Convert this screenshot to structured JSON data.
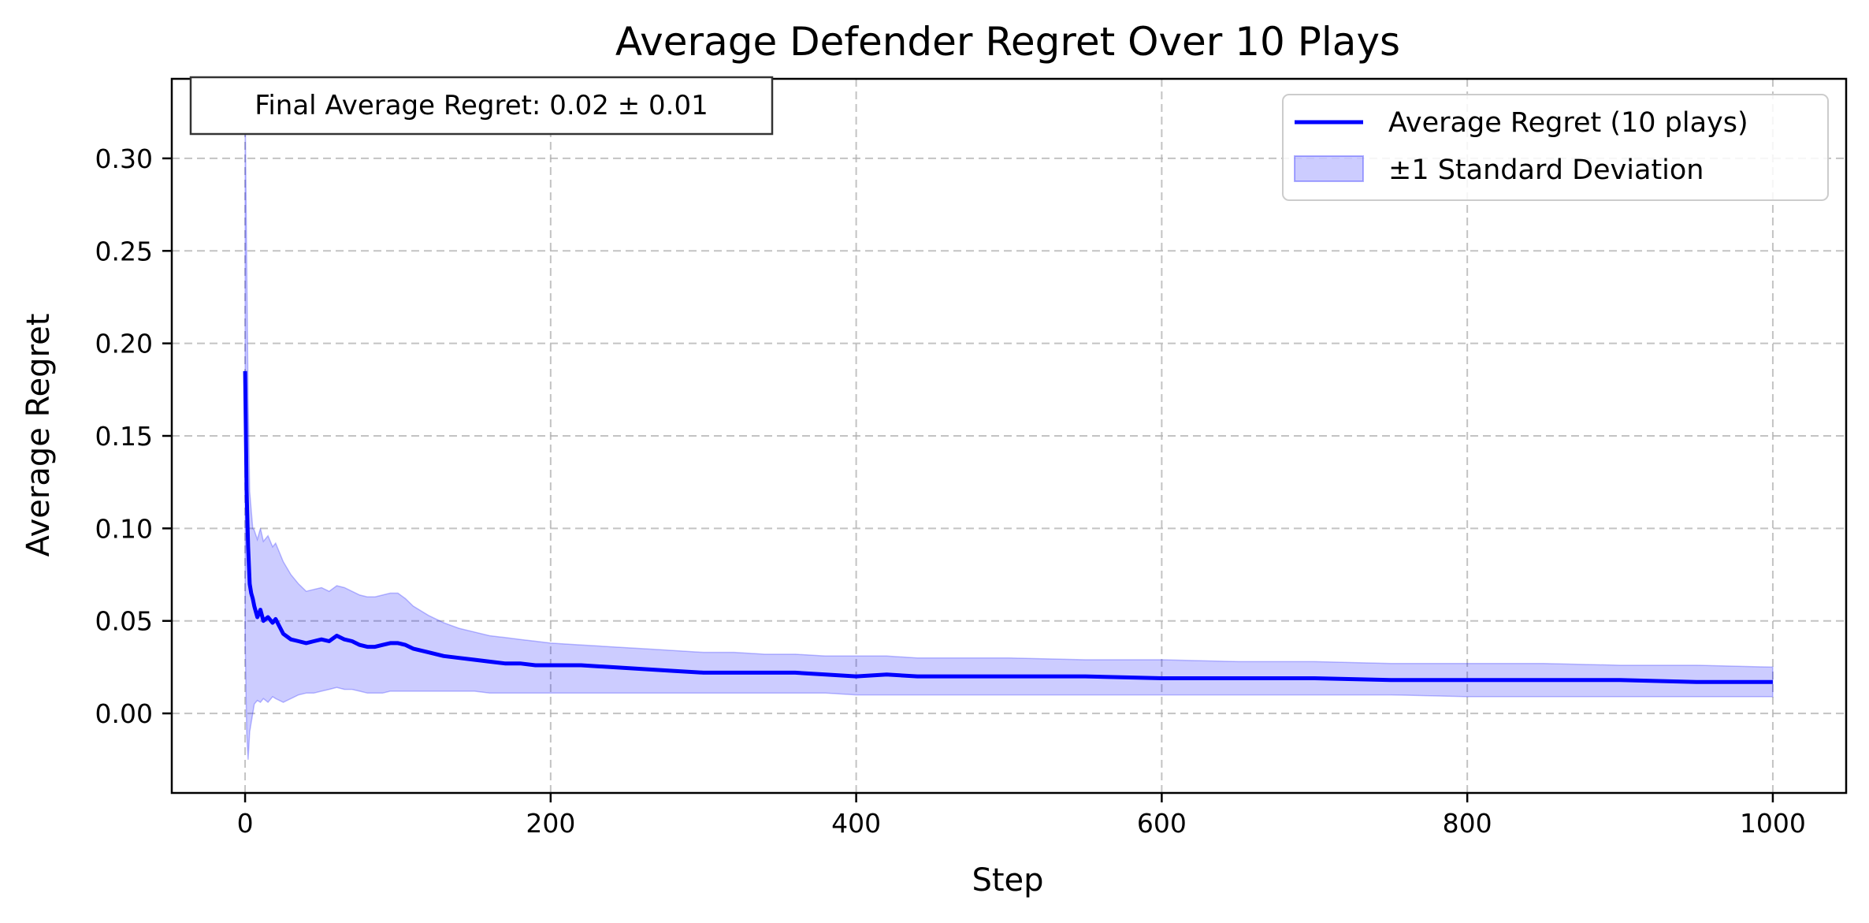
{
  "chart_data": {
    "type": "line",
    "title": "Average Defender Regret Over 10 Plays",
    "xlabel": "Step",
    "ylabel": "Average Regret",
    "xlim": [
      -48,
      1048
    ],
    "ylim": [
      -0.043,
      0.343
    ],
    "xticks": [
      0,
      200,
      400,
      600,
      800,
      1000
    ],
    "yticks": [
      0.0,
      0.05,
      0.1,
      0.15,
      0.2,
      0.25,
      0.3
    ],
    "ytick_labels": [
      "0.00",
      "0.05",
      "0.10",
      "0.15",
      "0.20",
      "0.25",
      "0.30"
    ],
    "grid": true,
    "legend_position": "top-right",
    "annotation": "Final Average Regret: 0.02 ± 0.01",
    "series": [
      {
        "name": "Average Regret (10 plays)",
        "color": "#0000ff",
        "kind": "line",
        "x": [
          0,
          1,
          2,
          3,
          4,
          5,
          6,
          8,
          10,
          12,
          15,
          18,
          20,
          25,
          30,
          35,
          40,
          45,
          50,
          55,
          60,
          65,
          70,
          75,
          80,
          85,
          90,
          95,
          100,
          105,
          110,
          120,
          130,
          140,
          150,
          160,
          170,
          180,
          190,
          200,
          220,
          240,
          260,
          280,
          300,
          320,
          340,
          360,
          380,
          400,
          420,
          440,
          460,
          480,
          500,
          550,
          600,
          650,
          700,
          750,
          800,
          850,
          900,
          950,
          1000
        ],
        "y": [
          0.185,
          0.12,
          0.09,
          0.07,
          0.065,
          0.062,
          0.058,
          0.052,
          0.056,
          0.05,
          0.052,
          0.049,
          0.051,
          0.043,
          0.04,
          0.039,
          0.038,
          0.039,
          0.04,
          0.039,
          0.042,
          0.04,
          0.039,
          0.037,
          0.036,
          0.036,
          0.037,
          0.038,
          0.038,
          0.037,
          0.035,
          0.033,
          0.031,
          0.03,
          0.029,
          0.028,
          0.027,
          0.027,
          0.026,
          0.026,
          0.026,
          0.025,
          0.024,
          0.023,
          0.022,
          0.022,
          0.022,
          0.022,
          0.021,
          0.02,
          0.021,
          0.02,
          0.02,
          0.02,
          0.02,
          0.02,
          0.019,
          0.019,
          0.019,
          0.018,
          0.018,
          0.018,
          0.018,
          0.017,
          0.017
        ]
      },
      {
        "name": "±1 Standard Deviation",
        "color": "#0000ff",
        "kind": "band",
        "x": [
          0,
          1,
          2,
          3,
          4,
          5,
          6,
          8,
          10,
          12,
          15,
          18,
          20,
          25,
          30,
          35,
          40,
          45,
          50,
          55,
          60,
          65,
          70,
          75,
          80,
          85,
          90,
          95,
          100,
          105,
          110,
          120,
          130,
          140,
          150,
          160,
          170,
          180,
          190,
          200,
          220,
          240,
          260,
          280,
          300,
          320,
          340,
          360,
          380,
          400,
          420,
          440,
          460,
          480,
          500,
          550,
          600,
          650,
          700,
          750,
          800,
          850,
          900,
          950,
          1000
        ],
        "upper": [
          0.33,
          0.25,
          0.17,
          0.12,
          0.11,
          0.1,
          0.099,
          0.094,
          0.1,
          0.093,
          0.096,
          0.09,
          0.092,
          0.082,
          0.075,
          0.07,
          0.066,
          0.067,
          0.068,
          0.066,
          0.069,
          0.068,
          0.066,
          0.064,
          0.063,
          0.063,
          0.064,
          0.065,
          0.065,
          0.062,
          0.058,
          0.053,
          0.049,
          0.046,
          0.044,
          0.042,
          0.041,
          0.04,
          0.039,
          0.038,
          0.037,
          0.036,
          0.035,
          0.034,
          0.033,
          0.033,
          0.032,
          0.032,
          0.031,
          0.031,
          0.031,
          0.03,
          0.03,
          0.03,
          0.03,
          0.029,
          0.029,
          0.028,
          0.028,
          0.027,
          0.027,
          0.027,
          0.026,
          0.026,
          0.025
        ],
        "lower": [
          0.04,
          -0.01,
          -0.025,
          -0.01,
          -0.005,
          0.0,
          0.005,
          0.007,
          0.006,
          0.008,
          0.006,
          0.009,
          0.008,
          0.006,
          0.008,
          0.01,
          0.011,
          0.011,
          0.012,
          0.013,
          0.014,
          0.013,
          0.013,
          0.012,
          0.011,
          0.011,
          0.011,
          0.012,
          0.012,
          0.012,
          0.012,
          0.012,
          0.012,
          0.012,
          0.012,
          0.011,
          0.011,
          0.011,
          0.011,
          0.011,
          0.011,
          0.011,
          0.011,
          0.011,
          0.011,
          0.011,
          0.011,
          0.011,
          0.011,
          0.01,
          0.01,
          0.01,
          0.01,
          0.01,
          0.01,
          0.01,
          0.01,
          0.01,
          0.01,
          0.01,
          0.009,
          0.009,
          0.009,
          0.009,
          0.009
        ]
      }
    ]
  }
}
